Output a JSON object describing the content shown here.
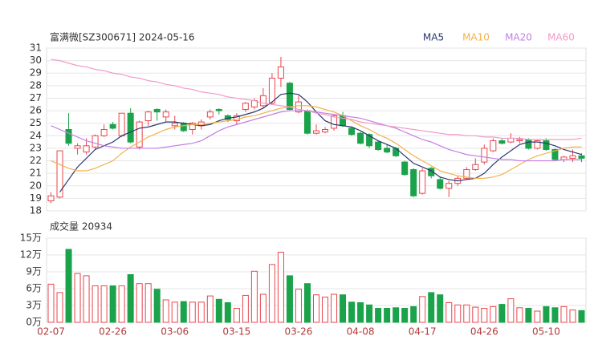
{
  "chart_data": [
    {
      "type": "candlestick",
      "title": "富满微[SZ300671] 2024-05-16",
      "categories": [
        "02-07",
        null,
        null,
        null,
        null,
        null,
        null,
        "02-26",
        null,
        null,
        null,
        null,
        null,
        null,
        "03-06",
        null,
        null,
        null,
        null,
        null,
        null,
        "03-15",
        null,
        null,
        null,
        null,
        null,
        null,
        "03-26",
        null,
        null,
        null,
        null,
        null,
        null,
        "04-08",
        null,
        null,
        null,
        null,
        null,
        null,
        "04-17",
        null,
        null,
        null,
        null,
        null,
        null,
        "04-26",
        null,
        null,
        null,
        null,
        null,
        null,
        "05-10",
        null,
        null,
        null,
        null
      ],
      "open": [
        18.8,
        19.1,
        24.5,
        23.0,
        22.7,
        23.1,
        24.0,
        24.9,
        24.0,
        25.8,
        23.1,
        25.2,
        26.1,
        25.5,
        24.8,
        25.0,
        24.5,
        24.8,
        25.5,
        26.1,
        25.6,
        25.2,
        26.1,
        26.3,
        26.4,
        26.6,
        28.6,
        28.2,
        25.9,
        26.0,
        24.2,
        24.3,
        24.6,
        25.6,
        24.6,
        24.2,
        24.1,
        23.5,
        23.0,
        23.0,
        21.9,
        21.3,
        19.4,
        21.4,
        20.5,
        19.8,
        20.2,
        20.6,
        21.3,
        21.9,
        22.8,
        23.6,
        23.5,
        23.6,
        23.7,
        23.0,
        23.6,
        22.9,
        22.1,
        22.2,
        22.4
      ],
      "high": [
        19.5,
        22.8,
        25.8,
        23.4,
        23.8,
        24.1,
        24.9,
        25.1,
        25.8,
        26.2,
        25.2,
        26.0,
        26.2,
        26.1,
        25.6,
        25.1,
        25.1,
        25.3,
        26.1,
        26.2,
        25.7,
        25.8,
        26.7,
        27.0,
        27.8,
        29.0,
        30.3,
        28.3,
        27.2,
        26.1,
        24.9,
        24.7,
        25.7,
        25.9,
        24.7,
        24.3,
        24.2,
        23.6,
        23.3,
        23.1,
        22.0,
        21.4,
        21.4,
        21.5,
        20.7,
        20.4,
        20.8,
        21.5,
        22.2,
        23.3,
        23.8,
        23.8,
        24.2,
        23.9,
        23.8,
        23.7,
        23.8,
        23.0,
        22.4,
        22.9,
        22.6
      ],
      "low": [
        18.6,
        19.0,
        23.2,
        22.5,
        22.5,
        22.9,
        23.9,
        24.5,
        23.9,
        23.4,
        22.9,
        24.8,
        25.2,
        25.1,
        24.5,
        24.3,
        24.1,
        24.5,
        25.3,
        25.7,
        25.1,
        24.9,
        25.9,
        26.1,
        26.2,
        26.5,
        27.9,
        26.0,
        25.8,
        24.1,
        24.1,
        24.2,
        24.4,
        24.7,
        24.0,
        23.3,
        23.0,
        22.8,
        22.6,
        22.3,
        20.8,
        19.1,
        19.3,
        20.6,
        19.7,
        19.1,
        20.0,
        20.5,
        21.2,
        21.7,
        22.7,
        23.3,
        23.4,
        23.4,
        22.9,
        22.9,
        22.8,
        22.0,
        21.9,
        21.9,
        21.9
      ],
      "close": [
        19.2,
        22.8,
        23.4,
        23.2,
        23.2,
        24.0,
        24.5,
        24.6,
        25.8,
        23.5,
        25.1,
        25.9,
        25.9,
        25.9,
        25.0,
        24.4,
        25.0,
        25.1,
        25.9,
        26.0,
        25.3,
        25.6,
        26.6,
        26.8,
        27.2,
        28.6,
        29.5,
        26.1,
        26.7,
        24.2,
        24.4,
        24.5,
        25.6,
        24.8,
        24.1,
        23.4,
        23.2,
        22.9,
        22.7,
        22.4,
        20.9,
        19.2,
        21.2,
        20.8,
        19.8,
        20.2,
        20.6,
        21.3,
        21.7,
        23.0,
        23.6,
        23.4,
        23.8,
        23.7,
        23.0,
        23.6,
        22.9,
        22.1,
        22.3,
        22.4,
        22.2
      ],
      "up_color": "#e8474e",
      "down_color": "#1aa34a",
      "series": [
        {
          "name": "MA5",
          "color": "#2b3670",
          "values": [
            null,
            19.5,
            20.5,
            21.5,
            22.2,
            22.9,
            23.2,
            23.5,
            24.0,
            24.3,
            24.6,
            24.7,
            24.9,
            25.1,
            25.1,
            25.0,
            24.9,
            24.8,
            24.9,
            25.2,
            25.4,
            25.5,
            25.7,
            25.9,
            26.2,
            26.7,
            27.3,
            27.4,
            27.3,
            26.7,
            25.9,
            25.2,
            24.9,
            24.8,
            24.7,
            24.4,
            24.0,
            23.6,
            23.3,
            23.0,
            22.4,
            21.8,
            21.5,
            21.2,
            20.7,
            20.5,
            20.4,
            20.5,
            20.6,
            21.0,
            21.7,
            22.3,
            22.8,
            23.3,
            23.5,
            23.5,
            23.4,
            23.2,
            22.9,
            22.7,
            22.5
          ]
        },
        {
          "name": "MA10",
          "color": "#f2b14a",
          "values": [
            22.0,
            21.7,
            21.4,
            21.2,
            21.2,
            21.4,
            21.7,
            22.0,
            22.6,
            23.1,
            23.5,
            23.9,
            24.2,
            24.5,
            24.7,
            24.8,
            24.9,
            24.9,
            25.0,
            25.1,
            25.2,
            25.3,
            25.5,
            25.6,
            25.8,
            26.0,
            26.2,
            26.3,
            26.4,
            26.4,
            26.3,
            26.1,
            25.9,
            25.6,
            25.2,
            24.8,
            24.5,
            24.1,
            23.8,
            23.4,
            22.9,
            22.4,
            22.0,
            21.6,
            21.2,
            21.0,
            20.8,
            20.7,
            20.6,
            20.6,
            20.7,
            20.9,
            21.3,
            21.7,
            22.1,
            22.4,
            22.6,
            22.8,
            23.0,
            23.1,
            23.1
          ]
        },
        {
          "name": "MA20",
          "color": "#c47ee6",
          "values": [
            24.8,
            24.5,
            24.2,
            23.9,
            23.6,
            23.4,
            23.2,
            23.1,
            23.0,
            23.0,
            23.0,
            23.0,
            23.0,
            23.1,
            23.2,
            23.3,
            23.4,
            23.6,
            24.0,
            24.4,
            24.7,
            24.9,
            25.1,
            25.3,
            25.5,
            25.7,
            25.9,
            26.0,
            26.0,
            26.0,
            25.9,
            25.8,
            25.7,
            25.6,
            25.5,
            25.4,
            25.2,
            25.0,
            24.8,
            24.6,
            24.3,
            24.0,
            23.7,
            23.5,
            23.2,
            22.9,
            22.7,
            22.5,
            22.4,
            22.3,
            22.2,
            22.1,
            22.1,
            22.0,
            22.0,
            22.0,
            22.0,
            22.0,
            22.1,
            22.1,
            22.1
          ]
        },
        {
          "name": "MA60",
          "color": "#f19ac8",
          "values": [
            30.1,
            30.0,
            29.8,
            29.6,
            29.5,
            29.3,
            29.2,
            29.0,
            28.9,
            28.7,
            28.6,
            28.4,
            28.3,
            28.1,
            28.0,
            27.8,
            27.7,
            27.5,
            27.4,
            27.3,
            27.1,
            27.0,
            26.9,
            26.8,
            26.6,
            26.5,
            26.4,
            26.3,
            26.1,
            26.0,
            25.8,
            25.7,
            25.5,
            25.4,
            25.3,
            25.1,
            25.0,
            24.9,
            24.8,
            24.7,
            24.6,
            24.5,
            24.4,
            24.3,
            24.2,
            24.1,
            24.1,
            24.0,
            24.0,
            23.9,
            23.9,
            23.8,
            23.8,
            23.8,
            23.7,
            23.7,
            23.7,
            23.7,
            23.7,
            23.7,
            23.8
          ]
        }
      ],
      "ylim": [
        18,
        31
      ],
      "yticks": [
        18,
        19,
        20,
        21,
        22,
        23,
        24,
        25,
        26,
        27,
        28,
        29,
        30,
        31
      ],
      "grid": true
    },
    {
      "type": "bar",
      "title": "成交量 20934",
      "values": [
        6.8,
        5.3,
        13.0,
        8.7,
        8.3,
        6.5,
        6.5,
        6.5,
        6.5,
        8.5,
        6.9,
        6.9,
        5.9,
        4.0,
        3.6,
        3.7,
        3.6,
        3.6,
        4.7,
        4.1,
        3.5,
        2.5,
        4.8,
        9.1,
        5.0,
        10.3,
        12.5,
        8.3,
        5.9,
        6.9,
        4.9,
        4.5,
        5.0,
        4.9,
        3.6,
        3.5,
        3.1,
        2.5,
        2.5,
        2.6,
        2.5,
        2.8,
        4.6,
        5.3,
        4.9,
        3.5,
        3.1,
        3.1,
        2.7,
        2.5,
        2.8,
        3.2,
        4.2,
        2.6,
        2.5,
        2.0,
        2.8,
        2.6,
        2.8,
        2.2,
        2.09
      ],
      "ylim": [
        0,
        15
      ],
      "yticks": [
        {
          "value": 0,
          "label": "0万"
        },
        {
          "value": 3,
          "label": "3万"
        },
        {
          "value": 6,
          "label": "6万"
        },
        {
          "value": 9,
          "label": "9万"
        },
        {
          "value": 12,
          "label": "12万"
        },
        {
          "value": 15,
          "label": "15万"
        }
      ],
      "grid": true
    }
  ]
}
